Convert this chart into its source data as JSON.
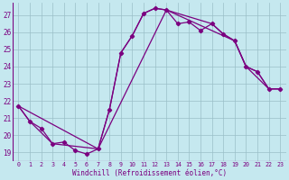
{
  "xlabel": "Windchill (Refroidissement éolien,°C)",
  "bg_color": "#c5e8ef",
  "line_color": "#7b0080",
  "grid_color": "#9abfc8",
  "ylim": [
    18.5,
    27.7
  ],
  "xlim": [
    -0.5,
    23.5
  ],
  "yticks": [
    19,
    20,
    21,
    22,
    23,
    24,
    25,
    26,
    27
  ],
  "xticks": [
    0,
    1,
    2,
    3,
    4,
    5,
    6,
    7,
    8,
    9,
    10,
    11,
    12,
    13,
    14,
    15,
    16,
    17,
    18,
    19,
    20,
    21,
    22,
    23
  ],
  "series1_x": [
    0,
    1,
    2,
    3,
    4,
    5,
    6,
    7,
    8,
    9,
    10,
    11,
    12,
    13,
    14,
    15,
    16,
    17,
    18,
    19,
    20,
    21,
    22,
    23
  ],
  "series1_y": [
    21.7,
    20.8,
    20.4,
    19.5,
    19.6,
    19.1,
    18.9,
    19.2,
    21.5,
    24.8,
    25.8,
    27.1,
    27.4,
    27.3,
    26.5,
    26.6,
    26.1,
    26.5,
    25.9,
    25.5,
    24.0,
    23.7,
    22.7,
    22.7
  ],
  "series2_x": [
    0,
    1,
    3,
    7,
    8,
    9,
    10,
    11,
    12,
    13,
    17,
    18,
    19,
    20,
    21,
    22,
    23
  ],
  "series2_y": [
    21.7,
    20.8,
    19.5,
    19.2,
    21.5,
    24.8,
    25.8,
    27.1,
    27.4,
    27.3,
    26.5,
    25.9,
    25.5,
    24.0,
    23.7,
    22.7,
    22.7
  ],
  "series3_x": [
    0,
    7,
    13,
    19,
    20,
    22,
    23
  ],
  "series3_y": [
    21.7,
    19.2,
    27.3,
    25.5,
    24.0,
    22.7,
    22.7
  ]
}
